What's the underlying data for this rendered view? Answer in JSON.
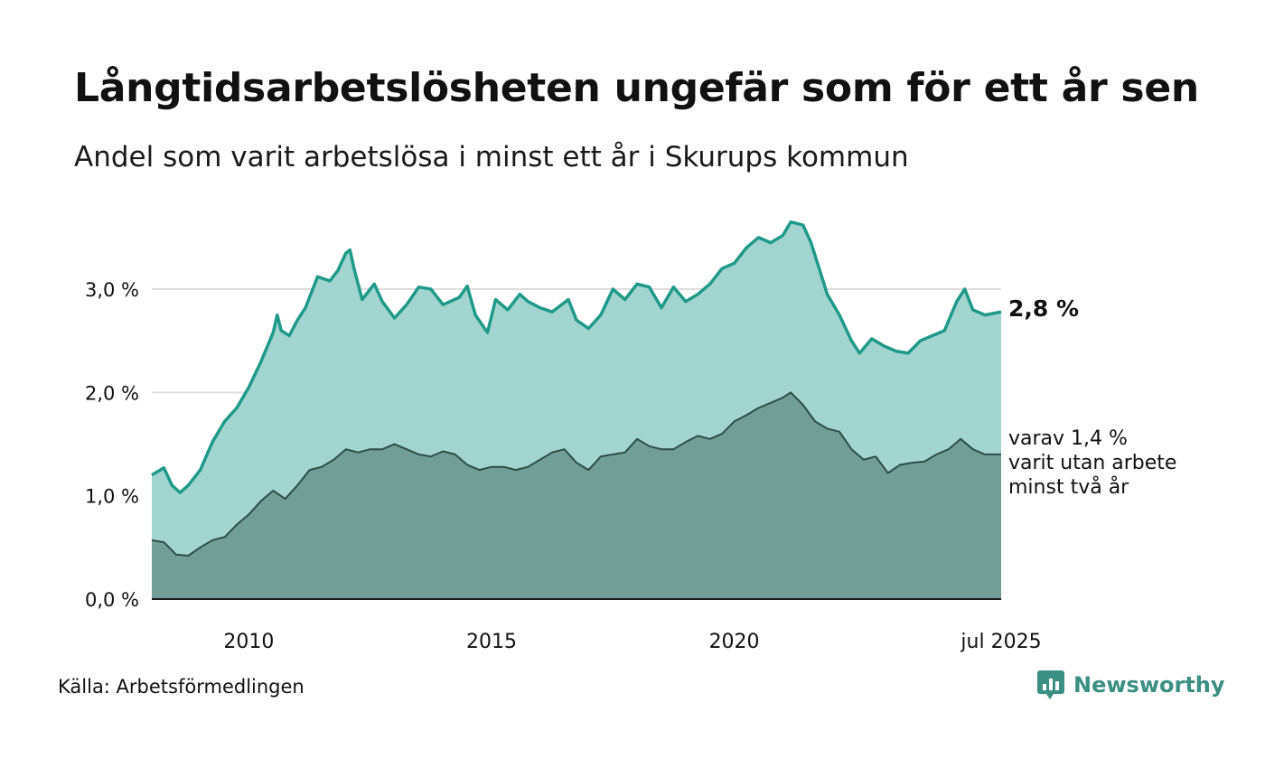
{
  "title": "Långtidsarbetslösheten ungefär som för ett år sen",
  "subtitle": "Andel som varit arbetslösa i minst ett år i Skurups kommun",
  "source": "Källa: Arbetsförmedlingen",
  "brand": "Newsworthy",
  "chart_data": {
    "type": "area",
    "x_start": "2008-01",
    "x_end": "2025-07",
    "x_ticks": [
      {
        "date": "2010-01",
        "label": "2010"
      },
      {
        "date": "2015-01",
        "label": "2015"
      },
      {
        "date": "2020-01",
        "label": "2020"
      },
      {
        "date": "2025-07",
        "label": "jul 2025"
      }
    ],
    "y_ticks": [
      {
        "value": 0,
        "label": "0,0 %"
      },
      {
        "value": 1,
        "label": "1,0 %"
      },
      {
        "value": 2,
        "label": "2,0 %"
      },
      {
        "value": 3,
        "label": "3,0 %"
      }
    ],
    "ylim": [
      0,
      3.7
    ],
    "grid": true,
    "annotations": {
      "main": "2,8 %",
      "sub_lines": [
        "varav 1,4 %",
        "varit utan arbete",
        "minst två år"
      ]
    },
    "colors": {
      "main_fill": "#a3d5d0",
      "main_line": "#1f9a8a",
      "sub_fill": "#719e97",
      "sub_line": "#2e4d47",
      "grid": "#dddddd"
    },
    "series": [
      {
        "key": "main",
        "points": [
          [
            "2008-01",
            1.2
          ],
          [
            "2008-04",
            1.27
          ],
          [
            "2008-06",
            1.1
          ],
          [
            "2008-08",
            1.03
          ],
          [
            "2008-10",
            1.1
          ],
          [
            "2009-01",
            1.25
          ],
          [
            "2009-04",
            1.52
          ],
          [
            "2009-07",
            1.72
          ],
          [
            "2009-10",
            1.85
          ],
          [
            "2010-01",
            2.05
          ],
          [
            "2010-04",
            2.3
          ],
          [
            "2010-07",
            2.58
          ],
          [
            "2010-08",
            2.75
          ],
          [
            "2010-09",
            2.6
          ],
          [
            "2010-11",
            2.55
          ],
          [
            "2011-01",
            2.7
          ],
          [
            "2011-03",
            2.82
          ],
          [
            "2011-06",
            3.12
          ],
          [
            "2011-09",
            3.08
          ],
          [
            "2011-11",
            3.18
          ],
          [
            "2012-01",
            3.35
          ],
          [
            "2012-02",
            3.38
          ],
          [
            "2012-03",
            3.2
          ],
          [
            "2012-05",
            2.9
          ],
          [
            "2012-08",
            3.05
          ],
          [
            "2012-10",
            2.88
          ],
          [
            "2013-01",
            2.72
          ],
          [
            "2013-04",
            2.85
          ],
          [
            "2013-07",
            3.02
          ],
          [
            "2013-10",
            3.0
          ],
          [
            "2014-01",
            2.85
          ],
          [
            "2014-05",
            2.92
          ],
          [
            "2014-07",
            3.03
          ],
          [
            "2014-09",
            2.75
          ],
          [
            "2014-12",
            2.58
          ],
          [
            "2015-02",
            2.9
          ],
          [
            "2015-05",
            2.8
          ],
          [
            "2015-08",
            2.95
          ],
          [
            "2015-10",
            2.88
          ],
          [
            "2016-01",
            2.82
          ],
          [
            "2016-04",
            2.78
          ],
          [
            "2016-08",
            2.9
          ],
          [
            "2016-10",
            2.7
          ],
          [
            "2017-01",
            2.62
          ],
          [
            "2017-04",
            2.75
          ],
          [
            "2017-07",
            3.0
          ],
          [
            "2017-10",
            2.9
          ],
          [
            "2018-01",
            3.05
          ],
          [
            "2018-04",
            3.02
          ],
          [
            "2018-07",
            2.82
          ],
          [
            "2018-10",
            3.02
          ],
          [
            "2019-01",
            2.88
          ],
          [
            "2019-04",
            2.95
          ],
          [
            "2019-07",
            3.05
          ],
          [
            "2019-10",
            3.2
          ],
          [
            "2020-01",
            3.25
          ],
          [
            "2020-04",
            3.4
          ],
          [
            "2020-07",
            3.5
          ],
          [
            "2020-10",
            3.45
          ],
          [
            "2021-01",
            3.52
          ],
          [
            "2021-03",
            3.65
          ],
          [
            "2021-06",
            3.62
          ],
          [
            "2021-08",
            3.45
          ],
          [
            "2021-10",
            3.2
          ],
          [
            "2021-12",
            2.95
          ],
          [
            "2022-03",
            2.75
          ],
          [
            "2022-06",
            2.5
          ],
          [
            "2022-08",
            2.38
          ],
          [
            "2022-11",
            2.52
          ],
          [
            "2023-02",
            2.45
          ],
          [
            "2023-05",
            2.4
          ],
          [
            "2023-08",
            2.38
          ],
          [
            "2023-11",
            2.5
          ],
          [
            "2024-02",
            2.55
          ],
          [
            "2024-05",
            2.6
          ],
          [
            "2024-08",
            2.88
          ],
          [
            "2024-10",
            3.0
          ],
          [
            "2024-12",
            2.8
          ],
          [
            "2025-03",
            2.75
          ],
          [
            "2025-07",
            2.78
          ]
        ]
      },
      {
        "key": "sub",
        "points": [
          [
            "2008-01",
            0.57
          ],
          [
            "2008-04",
            0.55
          ],
          [
            "2008-07",
            0.43
          ],
          [
            "2008-10",
            0.42
          ],
          [
            "2009-01",
            0.5
          ],
          [
            "2009-04",
            0.57
          ],
          [
            "2009-07",
            0.6
          ],
          [
            "2009-10",
            0.72
          ],
          [
            "2010-01",
            0.82
          ],
          [
            "2010-04",
            0.95
          ],
          [
            "2010-07",
            1.05
          ],
          [
            "2010-10",
            0.97
          ],
          [
            "2011-01",
            1.1
          ],
          [
            "2011-04",
            1.25
          ],
          [
            "2011-07",
            1.28
          ],
          [
            "2011-10",
            1.35
          ],
          [
            "2012-01",
            1.45
          ],
          [
            "2012-04",
            1.42
          ],
          [
            "2012-07",
            1.45
          ],
          [
            "2012-10",
            1.45
          ],
          [
            "2013-01",
            1.5
          ],
          [
            "2013-04",
            1.45
          ],
          [
            "2013-07",
            1.4
          ],
          [
            "2013-10",
            1.38
          ],
          [
            "2014-01",
            1.43
          ],
          [
            "2014-04",
            1.4
          ],
          [
            "2014-07",
            1.3
          ],
          [
            "2014-10",
            1.25
          ],
          [
            "2015-01",
            1.28
          ],
          [
            "2015-04",
            1.28
          ],
          [
            "2015-07",
            1.25
          ],
          [
            "2015-10",
            1.28
          ],
          [
            "2016-01",
            1.35
          ],
          [
            "2016-04",
            1.42
          ],
          [
            "2016-07",
            1.45
          ],
          [
            "2016-10",
            1.32
          ],
          [
            "2017-01",
            1.25
          ],
          [
            "2017-04",
            1.38
          ],
          [
            "2017-07",
            1.4
          ],
          [
            "2017-10",
            1.42
          ],
          [
            "2018-01",
            1.55
          ],
          [
            "2018-04",
            1.48
          ],
          [
            "2018-07",
            1.45
          ],
          [
            "2018-10",
            1.45
          ],
          [
            "2019-01",
            1.52
          ],
          [
            "2019-04",
            1.58
          ],
          [
            "2019-07",
            1.55
          ],
          [
            "2019-10",
            1.6
          ],
          [
            "2020-01",
            1.72
          ],
          [
            "2020-04",
            1.78
          ],
          [
            "2020-07",
            1.85
          ],
          [
            "2020-10",
            1.9
          ],
          [
            "2021-01",
            1.95
          ],
          [
            "2021-03",
            2.0
          ],
          [
            "2021-06",
            1.88
          ],
          [
            "2021-09",
            1.72
          ],
          [
            "2021-12",
            1.65
          ],
          [
            "2022-03",
            1.62
          ],
          [
            "2022-06",
            1.45
          ],
          [
            "2022-09",
            1.35
          ],
          [
            "2022-12",
            1.38
          ],
          [
            "2023-03",
            1.22
          ],
          [
            "2023-06",
            1.3
          ],
          [
            "2023-09",
            1.32
          ],
          [
            "2023-12",
            1.33
          ],
          [
            "2024-03",
            1.4
          ],
          [
            "2024-06",
            1.45
          ],
          [
            "2024-09",
            1.55
          ],
          [
            "2024-12",
            1.45
          ],
          [
            "2025-03",
            1.4
          ],
          [
            "2025-07",
            1.4
          ]
        ]
      }
    ]
  }
}
